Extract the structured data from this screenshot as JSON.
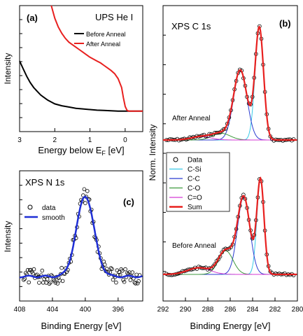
{
  "figure": {
    "background": "#ffffff",
    "colors": {
      "black": "#000000",
      "red": "#e8201f",
      "blue": "#1f2fd6",
      "cyan": "#37c9e8",
      "navy": "#2b3bd0",
      "green": "#3e9a3e",
      "magenta": "#d43ad4",
      "gray": "#888888"
    }
  },
  "chart_data": [
    {
      "id": "a",
      "type": "line",
      "panel_label": "(a)",
      "title": "UPS He I",
      "xlabel_main": "Energy below E",
      "xlabel_sub": "F",
      "xlabel_unit": " [eV]",
      "ylabel": "Intensity",
      "xlim": [
        3,
        -0.5
      ],
      "x_ticks": [
        3,
        2,
        1,
        0
      ],
      "x_ticklabels": [
        "3",
        "2",
        "1",
        "0"
      ],
      "y_ticks": "unlabeled",
      "legend_location": "upper-right",
      "series": [
        {
          "name": "Before Anneal",
          "color": "#000000",
          "x": [
            3.0,
            2.9,
            2.8,
            2.7,
            2.6,
            2.5,
            2.4,
            2.3,
            2.2,
            2.1,
            2.0,
            1.8,
            1.6,
            1.4,
            1.2,
            1.0,
            0.8,
            0.6,
            0.4,
            0.2,
            0.1,
            0.0,
            -0.1,
            -0.3,
            -0.5
          ],
          "y": [
            0.56,
            0.5,
            0.44,
            0.39,
            0.35,
            0.32,
            0.29,
            0.27,
            0.25,
            0.235,
            0.22,
            0.205,
            0.195,
            0.185,
            0.18,
            0.175,
            0.17,
            0.168,
            0.165,
            0.163,
            0.162,
            0.162,
            0.162,
            0.162,
            0.162
          ]
        },
        {
          "name": "After Anneal",
          "color": "#e8201f",
          "x": [
            2.1,
            2.0,
            1.9,
            1.8,
            1.7,
            1.6,
            1.5,
            1.4,
            1.3,
            1.2,
            1.1,
            1.0,
            0.9,
            0.8,
            0.7,
            0.6,
            0.5,
            0.4,
            0.3,
            0.2,
            0.1,
            0.05,
            0.0,
            -0.05,
            -0.1,
            -0.3,
            -0.5
          ],
          "y": [
            1.0,
            0.9,
            0.83,
            0.78,
            0.74,
            0.71,
            0.69,
            0.67,
            0.65,
            0.63,
            0.61,
            0.59,
            0.575,
            0.56,
            0.545,
            0.525,
            0.505,
            0.485,
            0.46,
            0.42,
            0.35,
            0.27,
            0.2,
            0.17,
            0.162,
            0.162,
            0.162
          ]
        }
      ]
    },
    {
      "id": "b",
      "type": "line",
      "panel_label": "(b)",
      "title": "XPS C 1s",
      "xlabel": "Binding Energy [eV]",
      "ylabel": "Norm. Intensity",
      "xlim": [
        292,
        280
      ],
      "x_ticks": [
        292,
        290,
        288,
        286,
        284,
        282,
        280
      ],
      "x_ticklabels": [
        "292",
        "290",
        "288",
        "286",
        "284",
        "282",
        "280"
      ],
      "y_ticks": "unlabeled",
      "legend_location": "center-left",
      "legend": [
        {
          "name": "Data",
          "style": "open-circle",
          "color": "#000000"
        },
        {
          "name": "C-Si",
          "style": "line",
          "color": "#37c9e8"
        },
        {
          "name": "C-C",
          "style": "line",
          "color": "#2b3bd0"
        },
        {
          "name": "C-O",
          "style": "line",
          "color": "#3e9a3e"
        },
        {
          "name": "C=O",
          "style": "line",
          "color": "#d43ad4"
        },
        {
          "name": "Sum",
          "style": "thick-line",
          "color": "#e8201f"
        }
      ],
      "spectra": [
        {
          "label": "After Anneal",
          "baseline": 0.0,
          "peaks": [
            {
              "name": "C-Si",
              "center": 283.4,
              "height": 1.0,
              "width": 0.38
            },
            {
              "name": "C-C",
              "center": 285.1,
              "height": 0.62,
              "width": 0.6
            },
            {
              "name": "C-O",
              "center": 286.8,
              "height": 0.06,
              "width": 0.8
            },
            {
              "name": "C=O",
              "center": 288.6,
              "height": 0.03,
              "width": 0.9
            }
          ]
        },
        {
          "label": "Before Anneal",
          "baseline": 0.0,
          "peaks": [
            {
              "name": "C-Si",
              "center": 283.3,
              "height": 1.0,
              "width": 0.32
            },
            {
              "name": "C-C",
              "center": 284.8,
              "height": 0.82,
              "width": 0.55
            },
            {
              "name": "C-O",
              "center": 286.4,
              "height": 0.25,
              "width": 0.65
            },
            {
              "name": "C=O",
              "center": 288.8,
              "height": 0.07,
              "width": 1.0
            }
          ]
        }
      ]
    },
    {
      "id": "c",
      "type": "scatter",
      "panel_label": "(c)",
      "title": "XPS N 1s",
      "xlabel": "Binding Energy [eV]",
      "ylabel": "Intensity",
      "xlim": [
        408,
        393
      ],
      "x_ticks": [
        408,
        404,
        400,
        396
      ],
      "x_ticklabels": [
        "408",
        "404",
        "400",
        "396"
      ],
      "y_ticks": "unlabeled",
      "legend_location": "upper-left",
      "legend": [
        {
          "name": "data",
          "style": "open-circle",
          "color": "#000000"
        },
        {
          "name": "smooth",
          "style": "line",
          "color": "#1f2fd6"
        }
      ],
      "peak": {
        "center": 400.0,
        "height": 1.0,
        "width": 0.85,
        "baseline": 0.12
      }
    }
  ]
}
